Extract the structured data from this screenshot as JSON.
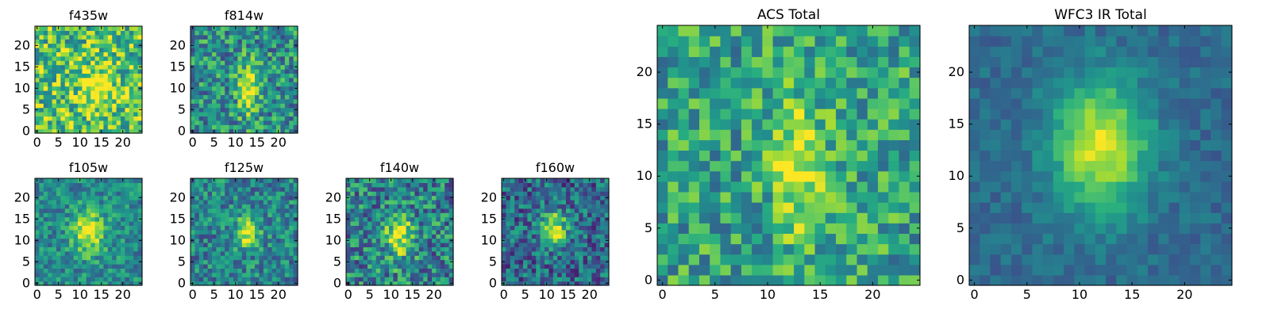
{
  "figure": {
    "cmap": "viridis",
    "grid": false
  },
  "chart_data": [
    {
      "type": "heatmap",
      "title": "f435w",
      "shape": [
        25,
        25
      ],
      "xlim": [
        0,
        24
      ],
      "ylim": [
        0,
        24
      ],
      "xticks": [
        "0",
        "5",
        "10",
        "15",
        "20"
      ],
      "yticks": [
        "0",
        "5",
        "10",
        "15",
        "20"
      ],
      "source": {
        "x": 14,
        "y": 10,
        "sx": 2.6,
        "sy": 3.8,
        "amp": 0.35,
        "base": 0.72,
        "noise": 0.32,
        "seed": 11
      }
    },
    {
      "type": "heatmap",
      "title": "f814w",
      "shape": [
        25,
        25
      ],
      "xlim": [
        0,
        24
      ],
      "ylim": [
        0,
        24
      ],
      "xticks": [
        "0",
        "5",
        "10",
        "15",
        "20"
      ],
      "yticks": [
        "0",
        "5",
        "10",
        "15",
        "20"
      ],
      "source": {
        "x": 13,
        "y": 10,
        "sx": 1.6,
        "sy": 4.2,
        "amp": 0.55,
        "base": 0.5,
        "noise": 0.28,
        "seed": 23
      }
    },
    {
      "type": "heatmap",
      "title": "f105w",
      "shape": [
        25,
        25
      ],
      "xlim": [
        0,
        24
      ],
      "ylim": [
        0,
        24
      ],
      "xticks": [
        "0",
        "5",
        "10",
        "15",
        "20"
      ],
      "yticks": [
        "0",
        "5",
        "10",
        "15",
        "20"
      ],
      "source": {
        "x": 12,
        "y": 12,
        "sx": 2.6,
        "sy": 3.6,
        "amp": 0.5,
        "base": 0.48,
        "noise": 0.2,
        "seed": 37
      }
    },
    {
      "type": "heatmap",
      "title": "f125w",
      "shape": [
        25,
        25
      ],
      "xlim": [
        0,
        24
      ],
      "ylim": [
        0,
        24
      ],
      "xticks": [
        "0",
        "5",
        "10",
        "15",
        "20"
      ],
      "yticks": [
        "0",
        "5",
        "10",
        "15",
        "20"
      ],
      "source": {
        "x": 13,
        "y": 12,
        "sx": 1.8,
        "sy": 2.6,
        "amp": 0.55,
        "base": 0.45,
        "noise": 0.24,
        "seed": 41
      }
    },
    {
      "type": "heatmap",
      "title": "f140w",
      "shape": [
        25,
        25
      ],
      "xlim": [
        0,
        24
      ],
      "ylim": [
        0,
        24
      ],
      "xticks": [
        "0",
        "5",
        "10",
        "15",
        "20"
      ],
      "yticks": [
        "0",
        "5",
        "10",
        "15",
        "20"
      ],
      "source": {
        "x": 12,
        "y": 11,
        "sx": 2.2,
        "sy": 3.6,
        "amp": 0.5,
        "base": 0.45,
        "noise": 0.3,
        "seed": 53
      }
    },
    {
      "type": "heatmap",
      "title": "f160w",
      "shape": [
        25,
        25
      ],
      "xlim": [
        0,
        24
      ],
      "ylim": [
        0,
        24
      ],
      "xticks": [
        "0",
        "5",
        "10",
        "15",
        "20"
      ],
      "yticks": [
        "0",
        "5",
        "10",
        "15",
        "20"
      ],
      "source": {
        "x": 12,
        "y": 13,
        "sx": 2.0,
        "sy": 2.8,
        "amp": 0.6,
        "base": 0.35,
        "noise": 0.26,
        "seed": 67
      }
    },
    {
      "type": "heatmap",
      "title": "ACS Total",
      "shape": [
        25,
        25
      ],
      "xlim": [
        0,
        24
      ],
      "ylim": [
        0,
        24
      ],
      "xticks": [
        "0",
        "5",
        "10",
        "15",
        "20"
      ],
      "yticks": [
        "0",
        "5",
        "10",
        "15",
        "20"
      ],
      "source": {
        "x": 13,
        "y": 11,
        "sx": 1.7,
        "sy": 4.5,
        "amp": 0.45,
        "base": 0.58,
        "noise": 0.25,
        "seed": 79
      }
    },
    {
      "type": "heatmap",
      "title": "WFC3 IR Total",
      "shape": [
        25,
        25
      ],
      "xlim": [
        0,
        24
      ],
      "ylim": [
        0,
        24
      ],
      "xticks": [
        "0",
        "5",
        "10",
        "15",
        "20"
      ],
      "yticks": [
        "0",
        "5",
        "10",
        "15",
        "20"
      ],
      "source": {
        "x": 12,
        "y": 13,
        "sx": 3.2,
        "sy": 4.5,
        "amp": 0.6,
        "base": 0.35,
        "noise": 0.09,
        "seed": 97
      }
    }
  ]
}
